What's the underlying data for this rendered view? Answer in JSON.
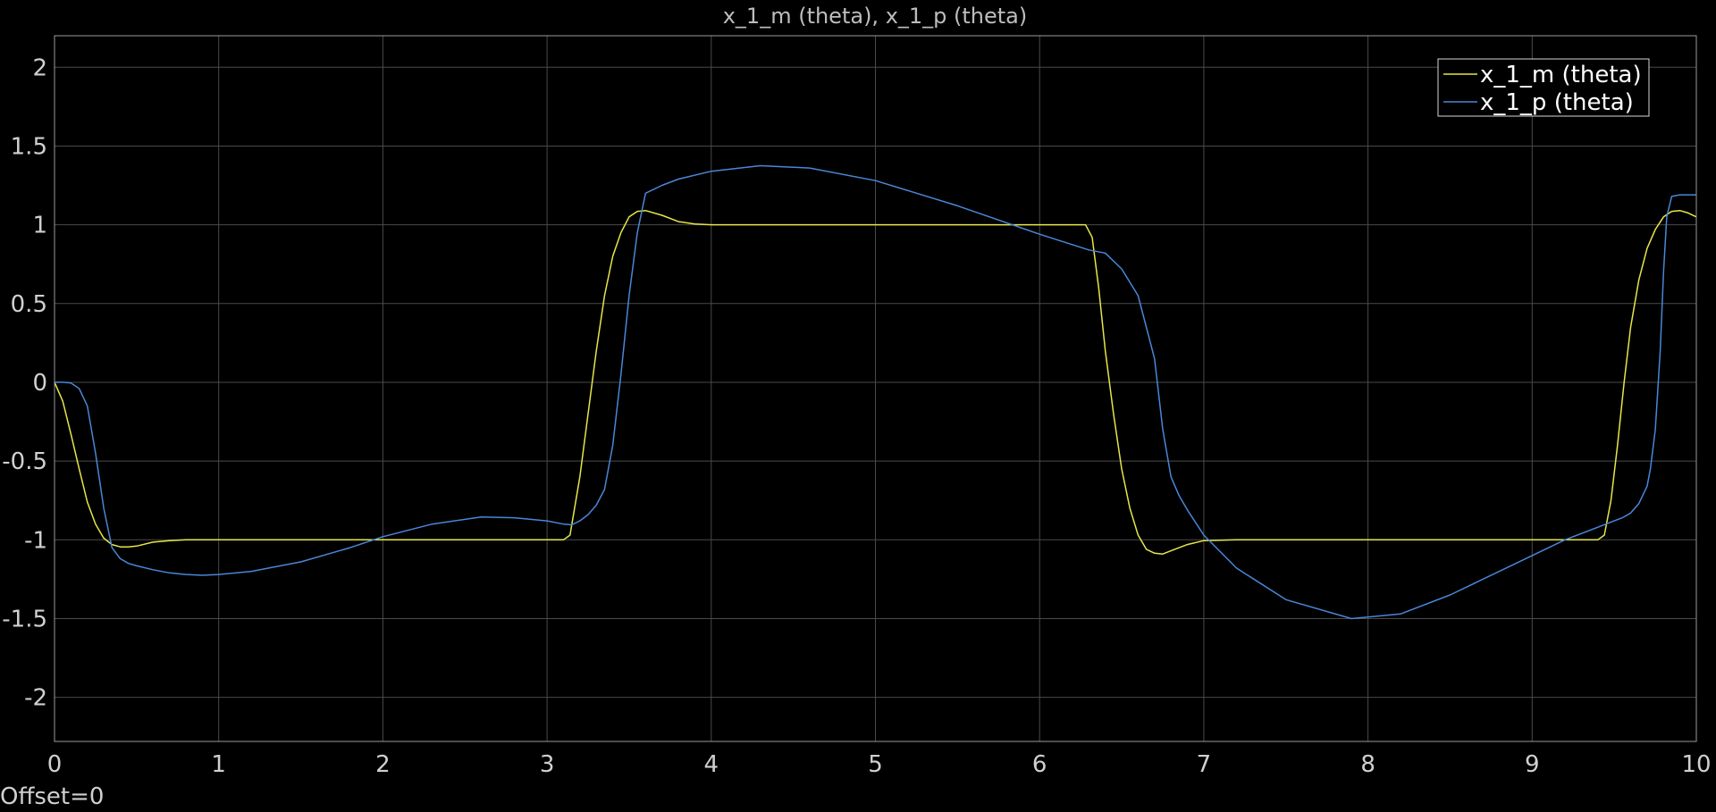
{
  "chart_data": {
    "type": "line",
    "title": "x_1_m (theta), x_1_p (theta)",
    "xlabel": "",
    "ylabel": "",
    "xlim": [
      0,
      10
    ],
    "ylim": [
      -2.28,
      2.2
    ],
    "x_ticks": [
      0,
      1,
      2,
      3,
      4,
      5,
      6,
      7,
      8,
      9,
      10
    ],
    "y_ticks": [
      2,
      1.5,
      1,
      0.5,
      0,
      -0.5,
      -1,
      -1.5,
      -2
    ],
    "x_tick_labels": [
      "0",
      "1",
      "2",
      "3",
      "4",
      "5",
      "6",
      "7",
      "8",
      "9",
      "10"
    ],
    "y_tick_labels": [
      "2",
      "1.5",
      "1",
      "0.5",
      "0",
      "-0.5",
      "-1",
      "-1.5",
      "-2"
    ],
    "grid": true,
    "legend_position": "top-right",
    "footer_text": "Offset=0",
    "series": [
      {
        "name": "x_1_m (theta)",
        "color": "#e6e64a",
        "x": [
          0,
          0.05,
          0.1,
          0.15,
          0.2,
          0.25,
          0.3,
          0.35,
          0.4,
          0.45,
          0.5,
          0.6,
          0.7,
          0.8,
          1.0,
          1.5,
          2.0,
          2.5,
          3.0,
          3.1,
          3.14,
          3.2,
          3.25,
          3.3,
          3.35,
          3.4,
          3.45,
          3.5,
          3.55,
          3.6,
          3.7,
          3.8,
          3.9,
          4.0,
          5.0,
          6.0,
          6.28,
          6.32,
          6.36,
          6.4,
          6.45,
          6.5,
          6.55,
          6.6,
          6.65,
          6.7,
          6.75,
          6.8,
          6.9,
          7.0,
          7.2,
          8.0,
          9.0,
          9.4,
          9.44,
          9.48,
          9.52,
          9.56,
          9.6,
          9.65,
          9.7,
          9.75,
          9.8,
          9.85,
          9.9,
          9.95,
          10.0
        ],
        "values": [
          0,
          -0.12,
          -0.33,
          -0.55,
          -0.76,
          -0.9,
          -0.99,
          -1.03,
          -1.045,
          -1.045,
          -1.04,
          -1.015,
          -1.005,
          -1.0,
          -1.0,
          -1.0,
          -1.0,
          -1.0,
          -1.0,
          -1.0,
          -0.97,
          -0.6,
          -0.2,
          0.2,
          0.55,
          0.8,
          0.95,
          1.05,
          1.085,
          1.09,
          1.06,
          1.02,
          1.005,
          1.0,
          1.0,
          1.0,
          1.0,
          0.92,
          0.6,
          0.2,
          -0.2,
          -0.55,
          -0.8,
          -0.97,
          -1.06,
          -1.085,
          -1.09,
          -1.07,
          -1.03,
          -1.005,
          -1.0,
          -1.0,
          -1.0,
          -1.0,
          -0.97,
          -0.75,
          -0.4,
          0.0,
          0.35,
          0.65,
          0.85,
          0.97,
          1.05,
          1.085,
          1.09,
          1.075,
          1.05
        ]
      },
      {
        "name": "x_1_p (theta)",
        "color": "#4a86d8",
        "x": [
          0,
          0.05,
          0.1,
          0.15,
          0.2,
          0.25,
          0.3,
          0.35,
          0.4,
          0.45,
          0.5,
          0.6,
          0.7,
          0.8,
          0.9,
          1.0,
          1.2,
          1.5,
          1.8,
          2.0,
          2.3,
          2.6,
          2.8,
          3.0,
          3.1,
          3.15,
          3.2,
          3.25,
          3.3,
          3.35,
          3.4,
          3.45,
          3.5,
          3.55,
          3.6,
          3.7,
          3.8,
          4.0,
          4.3,
          4.6,
          5.0,
          5.5,
          6.0,
          6.3,
          6.4,
          6.5,
          6.6,
          6.7,
          6.75,
          6.8,
          6.85,
          6.9,
          7.0,
          7.2,
          7.5,
          7.9,
          8.2,
          8.5,
          8.8,
          9.0,
          9.2,
          9.4,
          9.5,
          9.55,
          9.6,
          9.65,
          9.7,
          9.72,
          9.75,
          9.78,
          9.8,
          9.82,
          9.85,
          9.9,
          10.0
        ],
        "values": [
          0,
          0.0,
          -0.005,
          -0.04,
          -0.15,
          -0.45,
          -0.8,
          -1.05,
          -1.12,
          -1.15,
          -1.165,
          -1.19,
          -1.21,
          -1.22,
          -1.225,
          -1.22,
          -1.2,
          -1.14,
          -1.05,
          -0.98,
          -0.9,
          -0.855,
          -0.86,
          -0.88,
          -0.9,
          -0.905,
          -0.88,
          -0.84,
          -0.78,
          -0.68,
          -0.4,
          0.05,
          0.55,
          0.95,
          1.2,
          1.25,
          1.29,
          1.34,
          1.375,
          1.36,
          1.28,
          1.12,
          0.94,
          0.84,
          0.82,
          0.72,
          0.55,
          0.15,
          -0.3,
          -0.6,
          -0.72,
          -0.81,
          -0.97,
          -1.18,
          -1.38,
          -1.5,
          -1.47,
          -1.35,
          -1.2,
          -1.1,
          -1.0,
          -0.92,
          -0.88,
          -0.86,
          -0.83,
          -0.77,
          -0.66,
          -0.55,
          -0.3,
          0.2,
          0.7,
          1.05,
          1.18,
          1.19,
          1.19
        ]
      }
    ]
  }
}
